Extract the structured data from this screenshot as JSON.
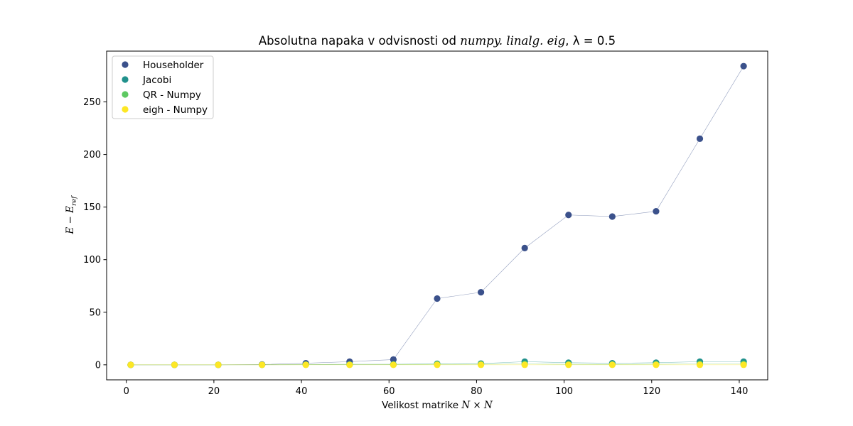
{
  "chart_data": {
    "type": "scatter",
    "title": {
      "prefix": "Absolutna napaka v odvisnosti od ",
      "math": "numpy. linalg. eig",
      "suffix": ", λ = 0.5"
    },
    "xlabel": {
      "prefix": "Velikost matrike ",
      "math": "N × N"
    },
    "ylabel": {
      "main": "E − E",
      "sub": "ref"
    },
    "xlim": [
      -4.5,
      146.5
    ],
    "ylim": [
      -14.3,
      298.3
    ],
    "xticks": [
      0,
      20,
      40,
      60,
      80,
      100,
      120,
      140
    ],
    "yticks": [
      0,
      50,
      100,
      150,
      200,
      250
    ],
    "grid": false,
    "legend_position": "upper left",
    "x": [
      1,
      11,
      21,
      31,
      41,
      51,
      61,
      71,
      81,
      91,
      101,
      111,
      121,
      131,
      141
    ],
    "series": [
      {
        "name": "Householder",
        "color": "#3b518b",
        "values": [
          0,
          0,
          0,
          0.3,
          1.5,
          3,
          5,
          63,
          69,
          111,
          142.5,
          141,
          146,
          215,
          284
        ]
      },
      {
        "name": "Jacobi",
        "color": "#21918c",
        "values": [
          0,
          0,
          0,
          0.1,
          0.3,
          0.5,
          0.5,
          1,
          1.2,
          3,
          2,
          1.5,
          2,
          3,
          3
        ]
      },
      {
        "name": "QR - Numpy",
        "color": "#5ec962",
        "values": [
          0,
          0,
          0,
          0,
          0.1,
          0.1,
          0.2,
          0.5,
          0.6,
          0.8,
          0.5,
          0.4,
          0.6,
          0.8,
          0.8
        ]
      },
      {
        "name": "eigh - Numpy",
        "color": "#fde725",
        "values": [
          0,
          0,
          0,
          0,
          0,
          0,
          0,
          0,
          0,
          0,
          0,
          0,
          0,
          0,
          0
        ]
      }
    ]
  }
}
